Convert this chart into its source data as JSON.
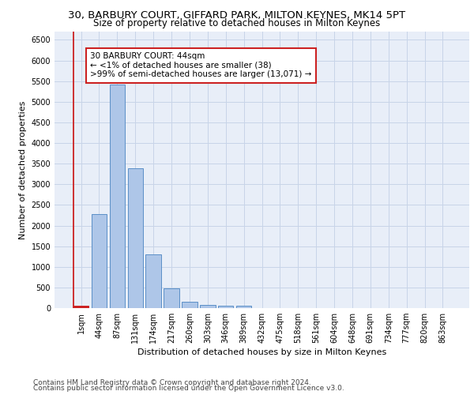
{
  "title_line1": "30, BARBURY COURT, GIFFARD PARK, MILTON KEYNES, MK14 5PT",
  "title_line2": "Size of property relative to detached houses in Milton Keynes",
  "xlabel": "Distribution of detached houses by size in Milton Keynes",
  "ylabel": "Number of detached properties",
  "categories": [
    "1sqm",
    "44sqm",
    "87sqm",
    "131sqm",
    "174sqm",
    "217sqm",
    "260sqm",
    "303sqm",
    "346sqm",
    "389sqm",
    "432sqm",
    "475sqm",
    "518sqm",
    "561sqm",
    "604sqm",
    "648sqm",
    "691sqm",
    "734sqm",
    "777sqm",
    "820sqm",
    "863sqm"
  ],
  "values": [
    65,
    2280,
    5420,
    3380,
    1310,
    480,
    160,
    80,
    60,
    50,
    0,
    0,
    0,
    0,
    0,
    0,
    0,
    0,
    0,
    0,
    0
  ],
  "bar_color": "#aec6e8",
  "bar_edge_color": "#5b8fc7",
  "highlight_bar_index": 0,
  "highlight_color": "#cc2222",
  "highlight_edge_color": "#cc2222",
  "annotation_text": "30 BARBURY COURT: 44sqm\n← <1% of detached houses are smaller (38)\n>99% of semi-detached houses are larger (13,071) →",
  "annotation_box_color": "#ffffff",
  "annotation_box_edge_color": "#cc2222",
  "ylim": [
    0,
    6700
  ],
  "yticks": [
    0,
    500,
    1000,
    1500,
    2000,
    2500,
    3000,
    3500,
    4000,
    4500,
    5000,
    5500,
    6000,
    6500
  ],
  "grid_color": "#c8d4e8",
  "bg_color": "#e8eef8",
  "footer_line1": "Contains HM Land Registry data © Crown copyright and database right 2024.",
  "footer_line2": "Contains public sector information licensed under the Open Government Licence v3.0.",
  "title_fontsize": 9.5,
  "subtitle_fontsize": 8.5,
  "axis_label_fontsize": 8,
  "tick_fontsize": 7,
  "annotation_fontsize": 7.5,
  "footer_fontsize": 6.5
}
